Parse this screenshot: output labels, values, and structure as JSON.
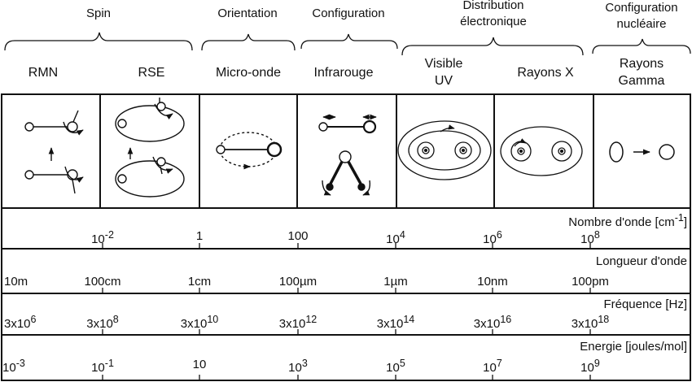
{
  "categories": [
    {
      "id": "spin",
      "label": "Spin"
    },
    {
      "id": "orientation",
      "label": "Orientation"
    },
    {
      "id": "configuration",
      "label": "Configuration"
    },
    {
      "id": "distribution",
      "line1": "Distribution",
      "line2": "électronique"
    },
    {
      "id": "nuclear",
      "line1": "Configuration",
      "line2": "nucléaire"
    }
  ],
  "regions": [
    {
      "id": "rmn",
      "line1": "RMN",
      "line2": ""
    },
    {
      "id": "rse",
      "line1": "RSE",
      "line2": ""
    },
    {
      "id": "micro",
      "line1": "Micro-onde",
      "line2": ""
    },
    {
      "id": "ir",
      "line1": "Infrarouge",
      "line2": ""
    },
    {
      "id": "visuv",
      "line1": "Visible",
      "line2": "UV"
    },
    {
      "id": "xray",
      "line1": "Rayons X",
      "line2": ""
    },
    {
      "id": "gamma",
      "line1": "Rayons",
      "line2": "Gamma"
    }
  ],
  "scales": {
    "wavenumber": {
      "title": "Nombre d'onde [cm",
      "title_sup": "-1",
      "title_end": "]",
      "ticks": [
        {
          "base": "10",
          "sup": "-2"
        },
        {
          "base": "1",
          "sup": ""
        },
        {
          "base": "100",
          "sup": ""
        },
        {
          "base": "10",
          "sup": "4"
        },
        {
          "base": "10",
          "sup": "6"
        },
        {
          "base": "10",
          "sup": "8"
        }
      ]
    },
    "wavelength": {
      "title": "Longueur d'onde",
      "ticks": [
        "10m",
        "100cm",
        "1cm",
        "100µm",
        "1µm",
        "10nm",
        "100pm"
      ]
    },
    "frequency": {
      "title": "Fréquence [Hz]",
      "ticks": [
        {
          "base": "3x10",
          "sup": "6"
        },
        {
          "base": "3x10",
          "sup": "8"
        },
        {
          "base": "3x10",
          "sup": "10"
        },
        {
          "base": "3x10",
          "sup": "12"
        },
        {
          "base": "3x10",
          "sup": "14"
        },
        {
          "base": "3x10",
          "sup": "16"
        },
        {
          "base": "3x10",
          "sup": "18"
        }
      ]
    },
    "energy": {
      "title": "Energie [joules/mol]",
      "ticks": [
        {
          "base": "10",
          "sup": "-3"
        },
        {
          "base": "10",
          "sup": "-1"
        },
        {
          "base": "10",
          "sup": ""
        },
        {
          "base": "10",
          "sup": "3"
        },
        {
          "base": "10",
          "sup": "5"
        },
        {
          "base": "10",
          "sup": "7"
        },
        {
          "base": "10",
          "sup": "9"
        }
      ]
    }
  }
}
